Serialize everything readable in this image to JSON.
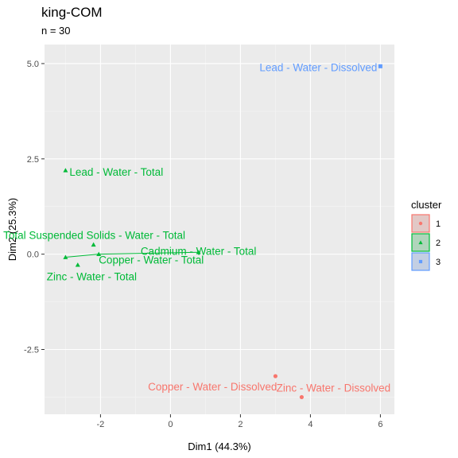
{
  "chart_data": {
    "type": "scatter",
    "title": "king-COM",
    "subtitle": "n = 30",
    "xlabel": "Dim1 (44.3%)",
    "ylabel": "Dim2 (25.3%)",
    "xlim": [
      -3.6,
      6.4
    ],
    "ylim": [
      -4.2,
      5.5
    ],
    "x_ticks": [
      -2,
      0,
      2,
      4,
      6
    ],
    "y_ticks": [
      -2.5,
      0.0,
      2.5,
      5.0
    ],
    "x_tick_labels": [
      "-2",
      "0",
      "2",
      "4",
      "6"
    ],
    "y_tick_labels": [
      "-2.5",
      "0.0",
      "2.5",
      "5.0"
    ],
    "grid": true,
    "legend": {
      "title": "cluster",
      "position": "right",
      "entries": [
        {
          "label": "1",
          "color": "#F8766D",
          "shape": "circle"
        },
        {
          "label": "2",
          "color": "#00BA38",
          "shape": "triangle"
        },
        {
          "label": "3",
          "color": "#619CFF",
          "shape": "square"
        }
      ]
    },
    "points": [
      {
        "label": "Lead - Water - Dissolved",
        "x": 6.0,
        "y": 4.93,
        "cluster": "3"
      },
      {
        "label": "Lead - Water - Total",
        "x": -3.0,
        "y": 2.2,
        "cluster": "2"
      },
      {
        "label": "Total Suspended Solids - Water - Total",
        "x": -2.2,
        "y": 0.25,
        "cluster": "2"
      },
      {
        "label": "Copper - Water - Total",
        "x": -2.05,
        "y": 0.0,
        "cluster": "2"
      },
      {
        "label": "Cadmium - Water - Total",
        "x": 0.8,
        "y": 0.05,
        "cluster": "2"
      },
      {
        "label": "Zinc - Water - Total",
        "x": -3.0,
        "y": -0.08,
        "cluster": "2"
      },
      {
        "label": "",
        "x": -2.65,
        "y": -0.28,
        "cluster": "2"
      },
      {
        "label": "Copper - Water - Dissolved",
        "x": 3.0,
        "y": -3.2,
        "cluster": "1"
      },
      {
        "label": "Zinc - Water - Dissolved",
        "x": 3.75,
        "y": -3.75,
        "cluster": "1"
      }
    ]
  }
}
